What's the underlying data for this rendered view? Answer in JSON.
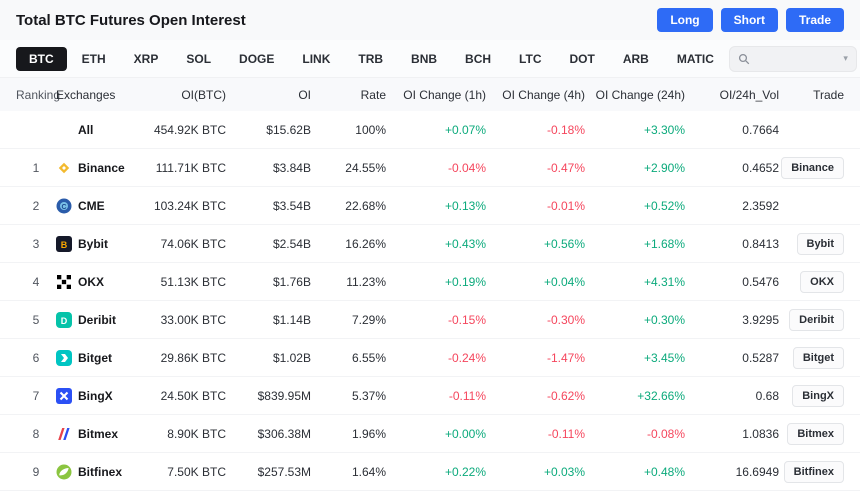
{
  "header": {
    "title": "Total BTC Futures Open Interest",
    "actions": [
      "Long",
      "Short",
      "Trade"
    ]
  },
  "tabs": {
    "items": [
      "BTC",
      "ETH",
      "XRP",
      "SOL",
      "DOGE",
      "LINK",
      "TRB",
      "BNB",
      "BCH",
      "LTC",
      "DOT",
      "ARB",
      "MATIC"
    ],
    "selected": "BTC",
    "search": {
      "placeholder": "",
      "value": ""
    }
  },
  "table": {
    "columns": [
      "Ranking",
      "Exchanges",
      "OI(BTC)",
      "OI",
      "Rate",
      "OI Change (1h)",
      "OI Change (4h)",
      "OI Change (24h)",
      "OI/24h_Vol",
      "Trade"
    ],
    "rows": [
      {
        "ranking": "",
        "exchange": "All",
        "icon": "",
        "oi_btc": "454.92K BTC",
        "oi": "$15.62B",
        "rate": "100%",
        "chg_1h": "+0.07%",
        "chg_4h": "-0.18%",
        "chg_24h": "+3.30%",
        "oi_24h_vol": "0.7664",
        "trade": ""
      },
      {
        "ranking": "1",
        "exchange": "Binance",
        "icon": "binance-icon",
        "oi_btc": "111.71K BTC",
        "oi": "$3.84B",
        "rate": "24.55%",
        "chg_1h": "-0.04%",
        "chg_4h": "-0.47%",
        "chg_24h": "+2.90%",
        "oi_24h_vol": "0.4652",
        "trade": "Binance"
      },
      {
        "ranking": "2",
        "exchange": "CME",
        "icon": "cme-icon",
        "oi_btc": "103.24K BTC",
        "oi": "$3.54B",
        "rate": "22.68%",
        "chg_1h": "+0.13%",
        "chg_4h": "-0.01%",
        "chg_24h": "+0.52%",
        "oi_24h_vol": "2.3592",
        "trade": ""
      },
      {
        "ranking": "3",
        "exchange": "Bybit",
        "icon": "bybit-icon",
        "oi_btc": "74.06K BTC",
        "oi": "$2.54B",
        "rate": "16.26%",
        "chg_1h": "+0.43%",
        "chg_4h": "+0.56%",
        "chg_24h": "+1.68%",
        "oi_24h_vol": "0.8413",
        "trade": "Bybit"
      },
      {
        "ranking": "4",
        "exchange": "OKX",
        "icon": "okx-icon",
        "oi_btc": "51.13K BTC",
        "oi": "$1.76B",
        "rate": "11.23%",
        "chg_1h": "+0.19%",
        "chg_4h": "+0.04%",
        "chg_24h": "+4.31%",
        "oi_24h_vol": "0.5476",
        "trade": "OKX"
      },
      {
        "ranking": "5",
        "exchange": "Deribit",
        "icon": "deribit-icon",
        "oi_btc": "33.00K BTC",
        "oi": "$1.14B",
        "rate": "7.29%",
        "chg_1h": "-0.15%",
        "chg_4h": "-0.30%",
        "chg_24h": "+0.30%",
        "oi_24h_vol": "3.9295",
        "trade": "Deribit"
      },
      {
        "ranking": "6",
        "exchange": "Bitget",
        "icon": "bitget-icon",
        "oi_btc": "29.86K BTC",
        "oi": "$1.02B",
        "rate": "6.55%",
        "chg_1h": "-0.24%",
        "chg_4h": "-1.47%",
        "chg_24h": "+3.45%",
        "oi_24h_vol": "0.5287",
        "trade": "Bitget"
      },
      {
        "ranking": "7",
        "exchange": "BingX",
        "icon": "bingx-icon",
        "oi_btc": "24.50K BTC",
        "oi": "$839.95M",
        "rate": "5.37%",
        "chg_1h": "-0.11%",
        "chg_4h": "-0.62%",
        "chg_24h": "+32.66%",
        "oi_24h_vol": "0.68",
        "trade": "BingX"
      },
      {
        "ranking": "8",
        "exchange": "Bitmex",
        "icon": "bitmex-icon",
        "oi_btc": "8.90K BTC",
        "oi": "$306.38M",
        "rate": "1.96%",
        "chg_1h": "+0.00%",
        "chg_4h": "-0.11%",
        "chg_24h": "-0.08%",
        "oi_24h_vol": "1.0836",
        "trade": "Bitmex"
      },
      {
        "ranking": "9",
        "exchange": "Bitfinex",
        "icon": "bitfinex-icon",
        "oi_btc": "7.50K BTC",
        "oi": "$257.53M",
        "rate": "1.64%",
        "chg_1h": "+0.22%",
        "chg_4h": "+0.03%",
        "chg_24h": "+0.48%",
        "oi_24h_vol": "16.6949",
        "trade": "Bitfinex"
      }
    ]
  },
  "colors": {
    "positive": "#0caa7c",
    "negative": "#f5465d",
    "accent_blue": "#2e6bf6",
    "tab_selected_bg": "#17181c"
  }
}
